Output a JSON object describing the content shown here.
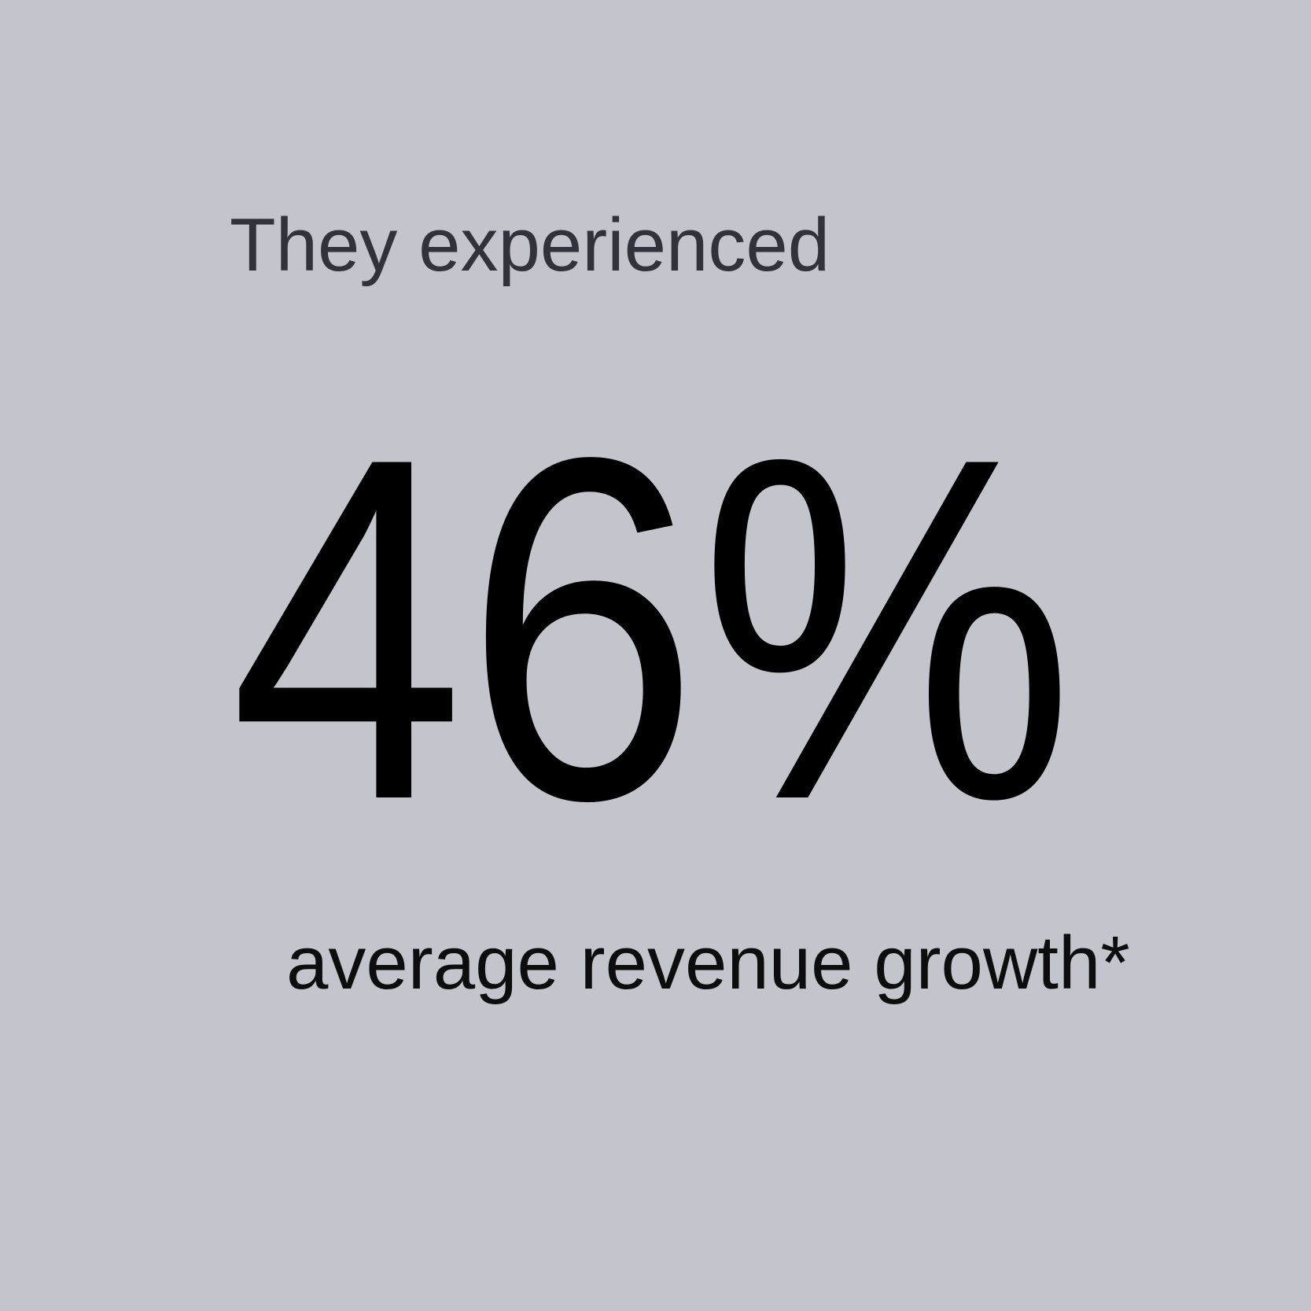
{
  "card": {
    "heading": "They experienced",
    "stat_value": "46%",
    "caption": "average revenue growth*",
    "colors": {
      "background": "#C4C4CC",
      "heading_text": "#30323C",
      "stat_text": "#000000",
      "caption_text": "#0D0D0D"
    }
  },
  "chart_data": {
    "type": "stat",
    "title": "They experienced",
    "value": 46,
    "unit": "%",
    "value_text": "46%",
    "label": "average revenue growth*",
    "footnote_marker": "*"
  }
}
